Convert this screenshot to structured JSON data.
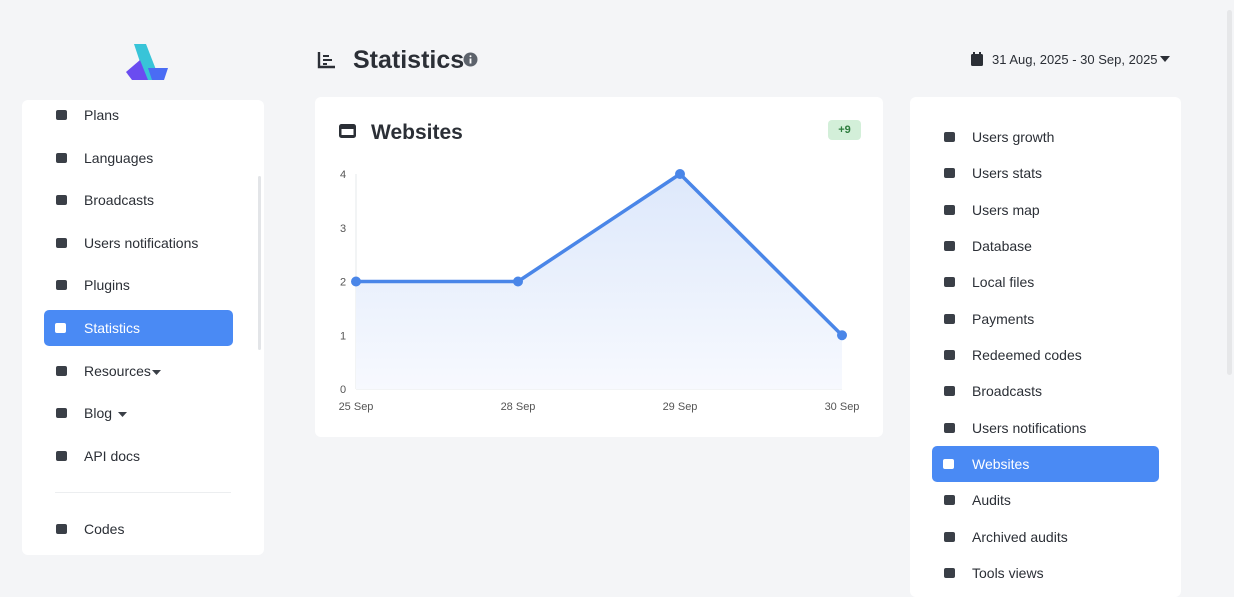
{
  "sidebar": {
    "items": [
      "Plans",
      "Languages",
      "Broadcasts",
      "Users notifications",
      "Plugins",
      "Statistics",
      "Resources",
      "Blog",
      "API docs",
      "Codes"
    ]
  },
  "header": {
    "title": "Statistics",
    "date_range": "31 Aug, 2025 - 30 Sep, 2025"
  },
  "card": {
    "title": "Websites",
    "badge": "+9"
  },
  "chart_data": {
    "type": "line",
    "categories": [
      "25 Sep",
      "28 Sep",
      "29 Sep",
      "30 Sep"
    ],
    "values": [
      2,
      2,
      4,
      1
    ],
    "color": "#4a86e8",
    "ylim": [
      0,
      4
    ],
    "yticks": [
      0,
      1,
      2,
      3,
      4
    ]
  },
  "right_menu": {
    "items": [
      "Users growth",
      "Users stats",
      "Users map",
      "Database",
      "Local files",
      "Payments",
      "Redeemed codes",
      "Broadcasts",
      "Users notifications",
      "Websites",
      "Audits",
      "Archived audits",
      "Tools views"
    ]
  }
}
